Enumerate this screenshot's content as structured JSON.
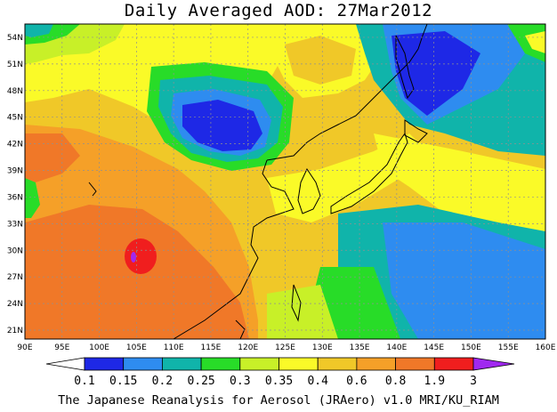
{
  "title": "Daily Averaged AOD: 27Mar2012",
  "credit": "The Japanese Reanalysis for Aerosol (JRAero) v1.0 MRI/KU_RIAM",
  "map": {
    "lon_range": [
      90,
      160
    ],
    "lat_range": [
      20,
      55.5
    ],
    "lon_ticks": [
      "90E",
      "95E",
      "100E",
      "105E",
      "110E",
      "115E",
      "120E",
      "125E",
      "130E",
      "135E",
      "140E",
      "145E",
      "150E",
      "155E",
      "160E"
    ],
    "lat_ticks": [
      "54N",
      "51N",
      "48N",
      "45N",
      "42N",
      "39N",
      "36N",
      "33N",
      "30N",
      "27N",
      "24N",
      "21N"
    ],
    "colors": {
      "below_01": "#ffffff",
      "b015": "#1e28e6",
      "b02": "#2e8cf0",
      "b025": "#10b4aa",
      "b03": "#28dc28",
      "b035": "#c8f028",
      "b04": "#fafa28",
      "b06": "#f0c828",
      "b08": "#f5a028",
      "b19": "#f07828",
      "b3": "#f01e1e",
      "above3": "#a028f0"
    }
  },
  "colorbar": {
    "labels": [
      "0.1",
      "0.15",
      "0.2",
      "0.25",
      "0.3",
      "0.35",
      "0.4",
      "0.6",
      "0.8",
      "1.9",
      "3"
    ],
    "fills": [
      "#1e28e6",
      "#2e8cf0",
      "#10b4aa",
      "#28dc28",
      "#c8f028",
      "#fafa28",
      "#f0c828",
      "#f5a028",
      "#f07828",
      "#f01e1e"
    ],
    "low_color": "#ffffff",
    "high_color": "#a028f0"
  }
}
